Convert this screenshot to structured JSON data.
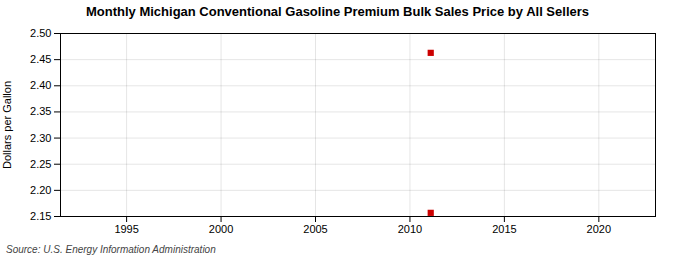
{
  "chart_data": {
    "type": "scatter",
    "title": "Monthly Michigan Conventional Gasoline Premium Bulk Sales Price by All Sellers",
    "ylabel": "Dollars per Gallon",
    "annotations": [
      "Source: U.S. Energy Information Administration"
    ],
    "x": [
      2011.1,
      2011.1
    ],
    "values": [
      2.463,
      2.157
    ],
    "colors": [
      "#cc0000",
      "#cc0000"
    ],
    "marker": "square",
    "xlim": [
      1991.5,
      2023
    ],
    "ylim": [
      2.15,
      2.5
    ],
    "xticks": [
      1995,
      2000,
      2005,
      2010,
      2015,
      2020
    ],
    "yticks": [
      2.15,
      {
        "value": 2.2,
        "label": "2.20"
      },
      2.25,
      {
        "value": 2.3,
        "label": "2.30"
      },
      2.35,
      {
        "value": 2.4,
        "label": "2.40"
      },
      2.45,
      {
        "value": 2.5,
        "label": "2.50"
      }
    ],
    "grid": true
  }
}
